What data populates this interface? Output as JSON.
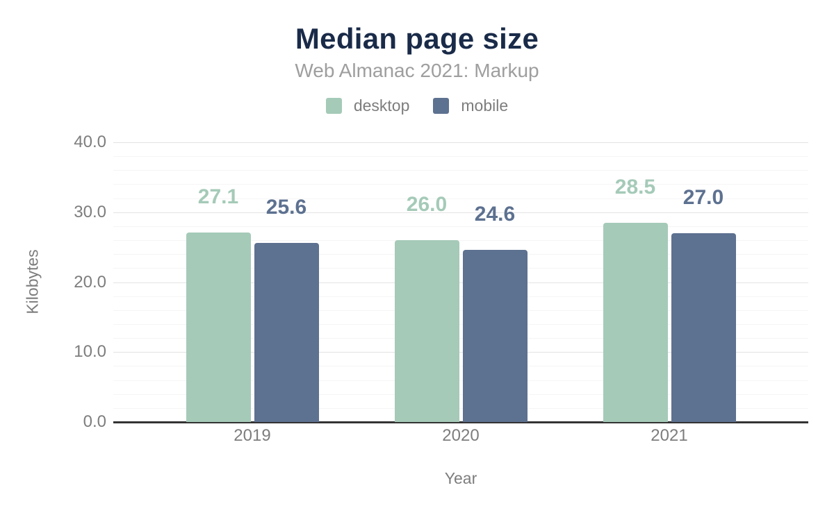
{
  "chart_data": {
    "type": "bar",
    "title": "Median page size",
    "subtitle": "Web Almanac 2021: Markup",
    "xlabel": "Year",
    "ylabel": "Kilobytes",
    "categories": [
      "2019",
      "2020",
      "2021"
    ],
    "series": [
      {
        "name": "desktop",
        "color": "#a5cab8",
        "values": [
          27.1,
          26.0,
          28.5
        ]
      },
      {
        "name": "mobile",
        "color": "#5d7190",
        "values": [
          25.6,
          24.6,
          27.0
        ]
      }
    ],
    "data_labels": [
      [
        "27.1",
        "26.0",
        "28.5"
      ],
      [
        "25.6",
        "24.6",
        "27.0"
      ]
    ],
    "ylim": [
      0,
      40
    ],
    "yticks": [
      0,
      10,
      20,
      30,
      40
    ],
    "ytick_labels": [
      "0.0",
      "10.0",
      "20.0",
      "30.0",
      "40.0"
    ],
    "minor_grid_step": 2,
    "grid": true,
    "legend_position": "top"
  },
  "colors": {
    "background": "#ffffff",
    "title": "#1a2b49",
    "subtitle": "#9e9e9e",
    "axis_text": "#7d7d7d",
    "axis_line": "#333333",
    "grid_major": "#e3e3e3",
    "grid_minor": "#f5f5f5",
    "desktop": "#a5cab8",
    "mobile": "#5d7190"
  }
}
